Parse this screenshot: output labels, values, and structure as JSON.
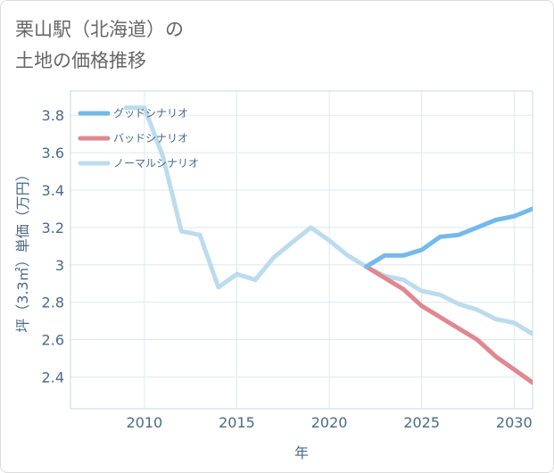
{
  "title_lines": [
    "栗山駅（北海道）の",
    "土地の価格推移"
  ],
  "chart_data": {
    "type": "line",
    "xlabel": "年",
    "ylabel": "坪（3.3㎡）単価（万円）",
    "xlim": [
      2006,
      2031
    ],
    "ylim": [
      2.23,
      3.93
    ],
    "x_ticks": [
      2010,
      2015,
      2020,
      2025,
      2030
    ],
    "y_ticks": [
      2.4,
      2.6,
      2.8,
      3.0,
      3.2,
      3.4,
      3.6,
      3.8
    ],
    "y_tick_labels": [
      "2.4",
      "2.6",
      "2.8",
      "3",
      "3.2",
      "3.4",
      "3.6",
      "3.8"
    ],
    "grid": true,
    "legend_position": "top-left",
    "series": [
      {
        "name": "グッドシナリオ",
        "color": "#74b9ec",
        "x": [
          2022,
          2023,
          2024,
          2025,
          2026,
          2027,
          2028,
          2029,
          2030,
          2031
        ],
        "y": [
          2.99,
          3.05,
          3.05,
          3.08,
          3.15,
          3.16,
          3.2,
          3.24,
          3.26,
          3.3
        ]
      },
      {
        "name": "バッドシナリオ",
        "color": "#e0878f",
        "x": [
          2022,
          2023,
          2024,
          2025,
          2026,
          2027,
          2028,
          2029,
          2030,
          2031
        ],
        "y": [
          2.99,
          2.93,
          2.87,
          2.78,
          2.72,
          2.66,
          2.6,
          2.51,
          2.44,
          2.37
        ]
      },
      {
        "name": "ノーマルシナリオ",
        "color": "#bcdcee",
        "x": [
          2009,
          2010,
          2011,
          2012,
          2013,
          2014,
          2015,
          2016,
          2017,
          2018,
          2019,
          2020,
          2021,
          2022,
          2023,
          2024,
          2025,
          2026,
          2027,
          2028,
          2029,
          2030,
          2031
        ],
        "y": [
          3.84,
          3.84,
          3.58,
          3.18,
          3.16,
          2.88,
          2.95,
          2.92,
          3.04,
          3.12,
          3.2,
          3.13,
          3.05,
          2.99,
          2.94,
          2.92,
          2.86,
          2.84,
          2.79,
          2.76,
          2.71,
          2.69,
          2.63
        ]
      }
    ]
  }
}
